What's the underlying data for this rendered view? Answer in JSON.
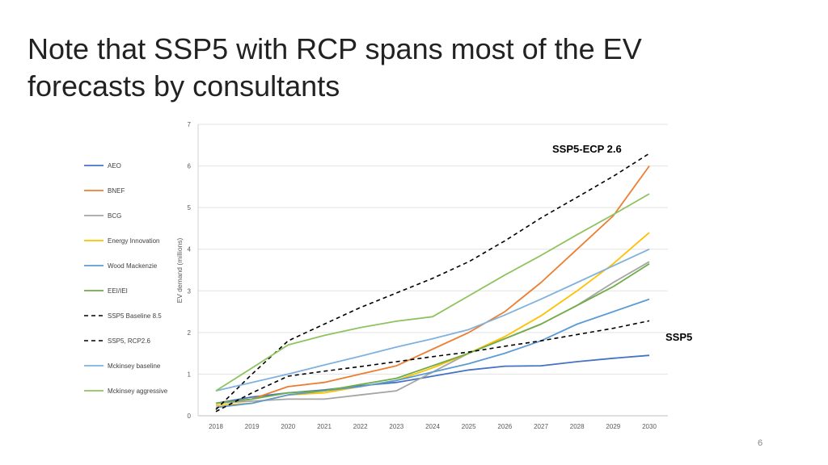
{
  "slide": {
    "title": "Note that SSP5 with RCP spans most of the EV forecasts by consultants",
    "page_number": "6"
  },
  "chart_data": {
    "type": "line",
    "title": "",
    "xlabel": "",
    "ylabel": "EV demand (millions)",
    "ylim": [
      0,
      7
    ],
    "yticks": [
      0,
      1,
      2,
      3,
      4,
      5,
      6,
      7
    ],
    "grid": true,
    "legend_position": "left",
    "x": [
      "2018",
      "2019",
      "2020",
      "2021",
      "2022",
      "2023",
      "2024",
      "2025",
      "2026",
      "2027",
      "2028",
      "2029",
      "2030"
    ],
    "series": [
      {
        "name": "AEO",
        "color": "#4472C4",
        "dash": false,
        "values": [
          0.3,
          0.45,
          0.55,
          0.62,
          0.72,
          0.8,
          0.95,
          1.1,
          1.19,
          1.2,
          1.3,
          1.38,
          1.45
        ]
      },
      {
        "name": "BNEF",
        "color": "#ED7D31",
        "dash": false,
        "values": [
          0.3,
          0.4,
          0.7,
          0.8,
          1.0,
          1.2,
          1.6,
          2.0,
          2.5,
          3.2,
          4.0,
          4.8,
          6.0
        ]
      },
      {
        "name": "BCG",
        "color": "#A5A5A5",
        "dash": false,
        "values": [
          0.3,
          0.35,
          0.4,
          0.4,
          0.5,
          0.6,
          1.05,
          1.5,
          1.85,
          2.2,
          2.65,
          3.2,
          3.7
        ]
      },
      {
        "name": "Energy Innovation",
        "color": "#FFC000",
        "dash": false,
        "values": [
          0.25,
          0.3,
          0.5,
          0.55,
          0.7,
          0.85,
          1.15,
          1.5,
          1.9,
          2.4,
          3.0,
          3.65,
          4.4
        ]
      },
      {
        "name": "Wood Mackenzie",
        "color": "#5B9BD5",
        "dash": false,
        "values": [
          0.2,
          0.3,
          0.5,
          0.6,
          0.7,
          0.85,
          1.05,
          1.25,
          1.5,
          1.8,
          2.2,
          2.5,
          2.8
        ]
      },
      {
        "name": "EEI/IEI",
        "color": "#70AD47",
        "dash": false,
        "values": [
          0.3,
          0.4,
          0.55,
          0.6,
          0.75,
          0.9,
          1.2,
          1.5,
          1.85,
          2.2,
          2.65,
          3.1,
          3.65
        ]
      },
      {
        "name": "SSP5 Baseline 8.5",
        "color": "#000000",
        "dash": true,
        "values": [
          0.15,
          1.0,
          1.8,
          2.2,
          2.6,
          2.95,
          3.3,
          3.7,
          4.2,
          4.75,
          5.25,
          5.75,
          6.3
        ]
      },
      {
        "name": "SSP5, RCP2.6",
        "color": "#000000",
        "dash": true,
        "values": [
          0.1,
          0.55,
          0.95,
          1.07,
          1.18,
          1.3,
          1.42,
          1.53,
          1.67,
          1.8,
          1.95,
          2.1,
          2.28
        ]
      },
      {
        "name": "Mckinsey baseline",
        "color": "#7FB2DE",
        "dash": false,
        "values": [
          0.6,
          0.8,
          1.0,
          1.22,
          1.43,
          1.65,
          1.85,
          2.07,
          2.42,
          2.8,
          3.2,
          3.6,
          4.0
        ]
      },
      {
        "name": "Mckinsey aggressive",
        "color": "#8FC35F",
        "dash": false,
        "values": [
          0.6,
          1.15,
          1.7,
          1.93,
          2.12,
          2.27,
          2.38,
          2.88,
          3.38,
          3.85,
          4.35,
          4.83,
          5.33
        ]
      }
    ],
    "annotations": [
      {
        "text": "SSP5-ECP 2.6",
        "anchor": "above the top dashed line near 2029"
      },
      {
        "text": "SSP5",
        "anchor": "right of the lower dashed line at 2030"
      }
    ]
  }
}
